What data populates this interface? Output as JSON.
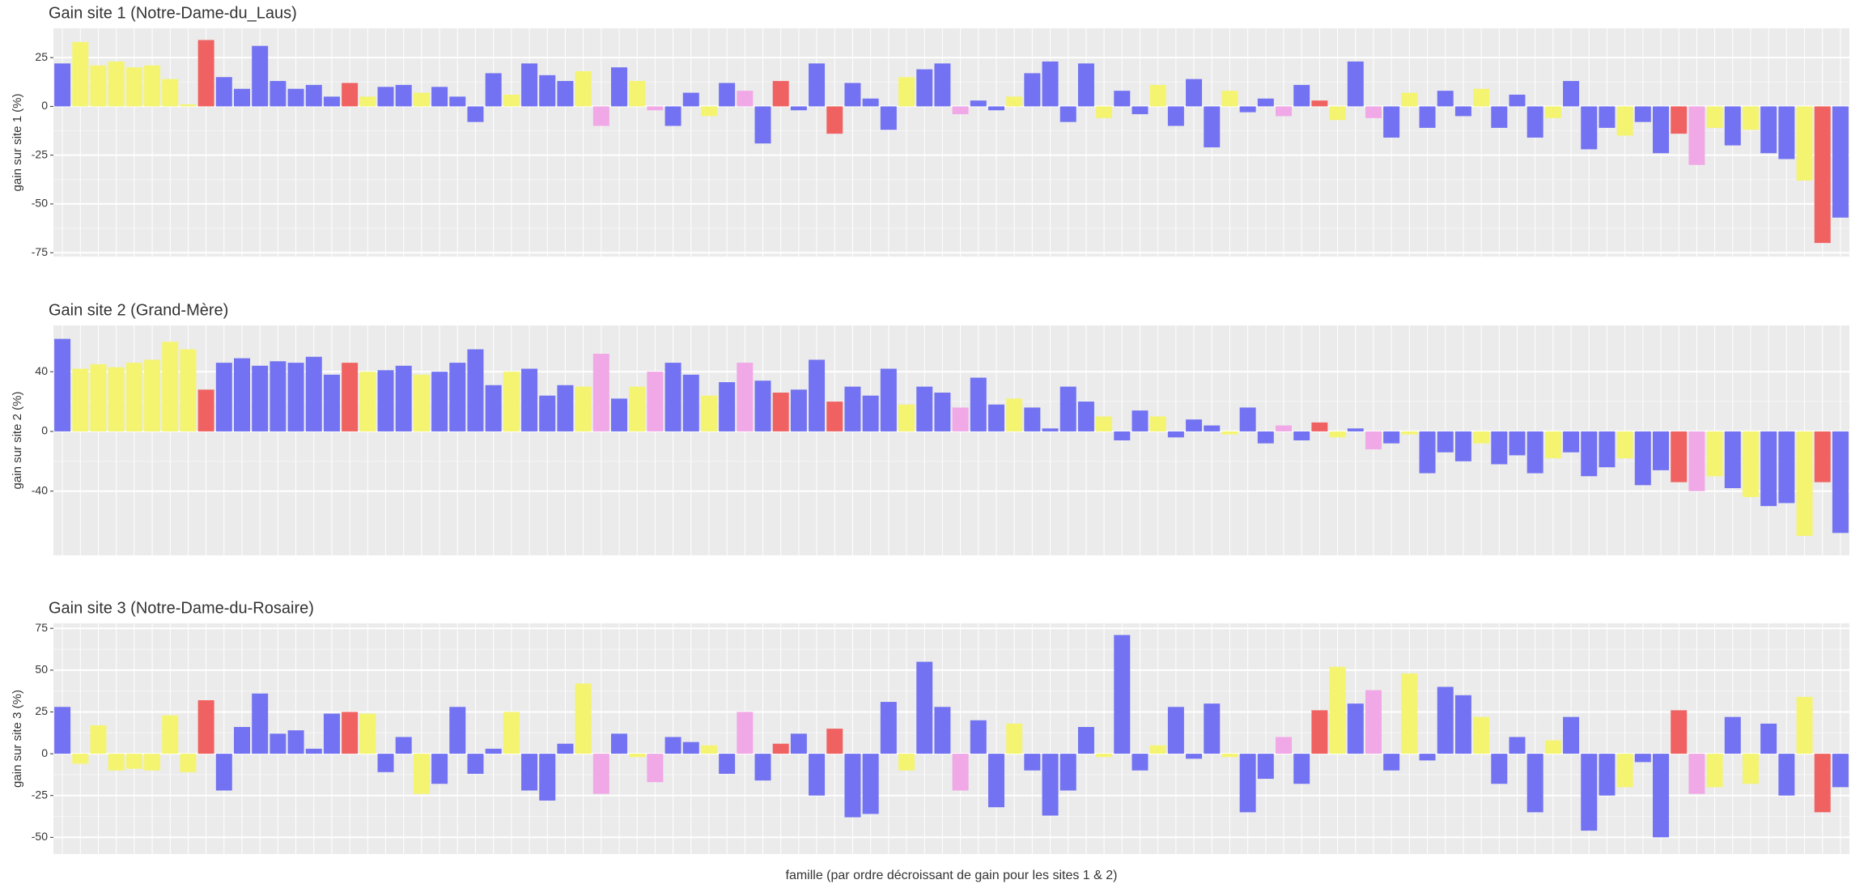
{
  "chart_data": [
    {
      "type": "bar",
      "title": "Gain site 1 (Notre-Dame-du_Laus)",
      "ylabel": "gain sur site 1 (%)",
      "categories": [
        null,
        null,
        null,
        null,
        null,
        null,
        null,
        null,
        null,
        null,
        null,
        null,
        null,
        null,
        null,
        null,
        null,
        null,
        null,
        null,
        null,
        null,
        null,
        null,
        null,
        null,
        null,
        null,
        null,
        null,
        null,
        null,
        null,
        null,
        null,
        null,
        null,
        null,
        null,
        null,
        null,
        null,
        null,
        null,
        null,
        null,
        null,
        null,
        null,
        null,
        null,
        null,
        null,
        null,
        null,
        null,
        null,
        null,
        null,
        null,
        null,
        null,
        null,
        null,
        null,
        null,
        null,
        null,
        null,
        null,
        null,
        null,
        null,
        null,
        null,
        null,
        null,
        null,
        null,
        null,
        null,
        null,
        null,
        null,
        null,
        null,
        null,
        null,
        null,
        null,
        null,
        null,
        null,
        null,
        null,
        null,
        null,
        null,
        null,
        null
      ],
      "values": [
        22,
        33,
        21,
        23,
        20,
        21,
        14,
        1,
        34,
        15,
        9,
        31,
        13,
        9,
        11,
        5,
        12,
        5,
        10,
        11,
        7,
        10,
        5,
        -8,
        17,
        6,
        22,
        16,
        13,
        18,
        -10,
        20,
        13,
        -2,
        -10,
        7,
        -5,
        12,
        8,
        -19,
        13,
        -2,
        22,
        -14,
        12,
        4,
        -12,
        15,
        19,
        22,
        -4,
        3,
        -2,
        5,
        17,
        23,
        -8,
        22,
        -6,
        8,
        -4,
        11,
        -10,
        14,
        -21,
        8,
        -3,
        4,
        -5,
        11,
        3,
        -7,
        23,
        -6,
        -16,
        7,
        -11,
        8,
        -5,
        9,
        -11,
        6,
        -16,
        -6,
        13,
        -22,
        -11,
        -15,
        -8,
        -24,
        -14,
        -30,
        -11,
        -20,
        -12,
        -24,
        -27,
        -38,
        -70,
        -57
      ],
      "colors": [
        "#7272f2",
        "#f4f470",
        "#f4f470",
        "#f4f470",
        "#f4f470",
        "#f4f470",
        "#f4f470",
        "#f4f470",
        "#f06262",
        "#7272f2",
        "#7272f2",
        "#7272f2",
        "#7272f2",
        "#7272f2",
        "#7272f2",
        "#7272f2",
        "#f06262",
        "#f4f470",
        "#7272f2",
        "#7272f2",
        "#f4f470",
        "#7272f2",
        "#7272f2",
        "#7272f2",
        "#7272f2",
        "#f4f470",
        "#7272f2",
        "#7272f2",
        "#7272f2",
        "#f4f470",
        "#f0a8e6",
        "#7272f2",
        "#f4f470",
        "#f0a8e6",
        "#7272f2",
        "#7272f2",
        "#f4f470",
        "#7272f2",
        "#f0a8e6",
        "#7272f2",
        "#f06262",
        "#7272f2",
        "#7272f2",
        "#f06262",
        "#7272f2",
        "#7272f2",
        "#7272f2",
        "#f4f470",
        "#7272f2",
        "#7272f2",
        "#f0a8e6",
        "#7272f2",
        "#7272f2",
        "#f4f470",
        "#7272f2",
        "#7272f2",
        "#7272f2",
        "#7272f2",
        "#f4f470",
        "#7272f2",
        "#7272f2",
        "#f4f470",
        "#7272f2",
        "#7272f2",
        "#7272f2",
        "#f4f470",
        "#7272f2",
        "#7272f2",
        "#f0a8e6",
        "#7272f2",
        "#f06262",
        "#f4f470",
        "#7272f2",
        "#f0a8e6",
        "#7272f2",
        "#f4f470",
        "#7272f2",
        "#7272f2",
        "#7272f2",
        "#f4f470",
        "#7272f2",
        "#7272f2",
        "#7272f2",
        "#f4f470",
        "#7272f2",
        "#7272f2",
        "#7272f2",
        "#f4f470",
        "#7272f2",
        "#7272f2",
        "#f06262",
        "#f0a8e6",
        "#f4f470",
        "#7272f2",
        "#f4f470",
        "#7272f2",
        "#7272f2",
        "#f4f470",
        "#f06262",
        "#7272f2"
      ],
      "ylim": [
        -77,
        40
      ],
      "yticks": [
        -75,
        -50,
        -25,
        0,
        25
      ],
      "grid": true
    },
    {
      "type": "bar",
      "title": "Gain site 2 (Grand-Mère)",
      "ylabel": "gain sur site 2 (%)",
      "categories": [
        null,
        null,
        null,
        null,
        null,
        null,
        null,
        null,
        null,
        null,
        null,
        null,
        null,
        null,
        null,
        null,
        null,
        null,
        null,
        null,
        null,
        null,
        null,
        null,
        null,
        null,
        null,
        null,
        null,
        null,
        null,
        null,
        null,
        null,
        null,
        null,
        null,
        null,
        null,
        null,
        null,
        null,
        null,
        null,
        null,
        null,
        null,
        null,
        null,
        null,
        null,
        null,
        null,
        null,
        null,
        null,
        null,
        null,
        null,
        null,
        null,
        null,
        null,
        null,
        null,
        null,
        null,
        null,
        null,
        null,
        null,
        null,
        null,
        null,
        null,
        null,
        null,
        null,
        null,
        null,
        null,
        null,
        null,
        null,
        null,
        null,
        null,
        null,
        null,
        null,
        null,
        null,
        null,
        null,
        null,
        null,
        null,
        null,
        null,
        null
      ],
      "values": [
        62,
        42,
        45,
        43,
        46,
        48,
        60,
        55,
        28,
        46,
        49,
        44,
        47,
        46,
        50,
        38,
        46,
        40,
        41,
        44,
        38,
        40,
        46,
        55,
        31,
        40,
        42,
        24,
        31,
        30,
        52,
        22,
        30,
        40,
        46,
        38,
        24,
        33,
        46,
        34,
        26,
        28,
        48,
        20,
        30,
        24,
        42,
        18,
        30,
        26,
        16,
        36,
        18,
        22,
        16,
        2,
        30,
        20,
        10,
        -6,
        14,
        10,
        -4,
        8,
        4,
        -2,
        16,
        -8,
        4,
        -6,
        6,
        -4,
        2,
        -12,
        -8,
        -2,
        -28,
        -14,
        -20,
        -8,
        -22,
        -16,
        -28,
        -18,
        -14,
        -30,
        -24,
        -18,
        -36,
        -26,
        -34,
        -40,
        -30,
        -38,
        -44,
        -50,
        -48,
        -70,
        -34,
        -68
      ],
      "colors": [
        "#7272f2",
        "#f4f470",
        "#f4f470",
        "#f4f470",
        "#f4f470",
        "#f4f470",
        "#f4f470",
        "#f4f470",
        "#f06262",
        "#7272f2",
        "#7272f2",
        "#7272f2",
        "#7272f2",
        "#7272f2",
        "#7272f2",
        "#7272f2",
        "#f06262",
        "#f4f470",
        "#7272f2",
        "#7272f2",
        "#f4f470",
        "#7272f2",
        "#7272f2",
        "#7272f2",
        "#7272f2",
        "#f4f470",
        "#7272f2",
        "#7272f2",
        "#7272f2",
        "#f4f470",
        "#f0a8e6",
        "#7272f2",
        "#f4f470",
        "#f0a8e6",
        "#7272f2",
        "#7272f2",
        "#f4f470",
        "#7272f2",
        "#f0a8e6",
        "#7272f2",
        "#f06262",
        "#7272f2",
        "#7272f2",
        "#f06262",
        "#7272f2",
        "#7272f2",
        "#7272f2",
        "#f4f470",
        "#7272f2",
        "#7272f2",
        "#f0a8e6",
        "#7272f2",
        "#7272f2",
        "#f4f470",
        "#7272f2",
        "#7272f2",
        "#7272f2",
        "#7272f2",
        "#f4f470",
        "#7272f2",
        "#7272f2",
        "#f4f470",
        "#7272f2",
        "#7272f2",
        "#7272f2",
        "#f4f470",
        "#7272f2",
        "#7272f2",
        "#f0a8e6",
        "#7272f2",
        "#f06262",
        "#f4f470",
        "#7272f2",
        "#f0a8e6",
        "#7272f2",
        "#f4f470",
        "#7272f2",
        "#7272f2",
        "#7272f2",
        "#f4f470",
        "#7272f2",
        "#7272f2",
        "#7272f2",
        "#f4f470",
        "#7272f2",
        "#7272f2",
        "#7272f2",
        "#f4f470",
        "#7272f2",
        "#7272f2",
        "#f06262",
        "#f0a8e6",
        "#f4f470",
        "#7272f2",
        "#f4f470",
        "#7272f2",
        "#7272f2",
        "#f4f470",
        "#f06262",
        "#7272f2"
      ],
      "ylim": [
        -83,
        71
      ],
      "yticks": [
        -40,
        0,
        40
      ],
      "grid": true
    },
    {
      "type": "bar",
      "title": "Gain site 3 (Notre-Dame-du-Rosaire)",
      "ylabel": "gain sur site 3 (%)",
      "xlabel": "famille (par ordre décroissant de gain pour les sites 1 & 2)",
      "categories": [
        null,
        null,
        null,
        null,
        null,
        null,
        null,
        null,
        null,
        null,
        null,
        null,
        null,
        null,
        null,
        null,
        null,
        null,
        null,
        null,
        null,
        null,
        null,
        null,
        null,
        null,
        null,
        null,
        null,
        null,
        null,
        null,
        null,
        null,
        null,
        null,
        null,
        null,
        null,
        null,
        null,
        null,
        null,
        null,
        null,
        null,
        null,
        null,
        null,
        null,
        null,
        null,
        null,
        null,
        null,
        null,
        null,
        null,
        null,
        null,
        null,
        null,
        null,
        null,
        null,
        null,
        null,
        null,
        null,
        null,
        null,
        null,
        null,
        null,
        null,
        null,
        null,
        null,
        null,
        null,
        null,
        null,
        null,
        null,
        null,
        null,
        null,
        null,
        null,
        null,
        null,
        null,
        null,
        null,
        null,
        null,
        null,
        null,
        null,
        null
      ],
      "values": [
        28,
        -6,
        17,
        -10,
        -9,
        -10,
        23,
        -11,
        32,
        -22,
        16,
        36,
        12,
        14,
        3,
        24,
        25,
        24,
        -11,
        10,
        -24,
        -18,
        28,
        -12,
        3,
        25,
        -22,
        -28,
        6,
        42,
        -24,
        12,
        -2,
        -17,
        10,
        7,
        5,
        -12,
        25,
        -16,
        6,
        12,
        -25,
        15,
        -38,
        -36,
        31,
        -10,
        55,
        28,
        -22,
        20,
        -32,
        18,
        -10,
        -37,
        -22,
        16,
        -2,
        71,
        -10,
        5,
        28,
        -3,
        30,
        -2,
        -35,
        -15,
        10,
        -18,
        26,
        52,
        30,
        38,
        -10,
        48,
        -4,
        40,
        35,
        22,
        -18,
        10,
        -35,
        8,
        22,
        -46,
        -25,
        -20,
        -5,
        -50,
        26,
        -24,
        -20,
        22,
        -18,
        18,
        -25,
        34,
        -35,
        -20
      ],
      "colors": [
        "#7272f2",
        "#f4f470",
        "#f4f470",
        "#f4f470",
        "#f4f470",
        "#f4f470",
        "#f4f470",
        "#f4f470",
        "#f06262",
        "#7272f2",
        "#7272f2",
        "#7272f2",
        "#7272f2",
        "#7272f2",
        "#7272f2",
        "#7272f2",
        "#f06262",
        "#f4f470",
        "#7272f2",
        "#7272f2",
        "#f4f470",
        "#7272f2",
        "#7272f2",
        "#7272f2",
        "#7272f2",
        "#f4f470",
        "#7272f2",
        "#7272f2",
        "#7272f2",
        "#f4f470",
        "#f0a8e6",
        "#7272f2",
        "#f4f470",
        "#f0a8e6",
        "#7272f2",
        "#7272f2",
        "#f4f470",
        "#7272f2",
        "#f0a8e6",
        "#7272f2",
        "#f06262",
        "#7272f2",
        "#7272f2",
        "#f06262",
        "#7272f2",
        "#7272f2",
        "#7272f2",
        "#f4f470",
        "#7272f2",
        "#7272f2",
        "#f0a8e6",
        "#7272f2",
        "#7272f2",
        "#f4f470",
        "#7272f2",
        "#7272f2",
        "#7272f2",
        "#7272f2",
        "#f4f470",
        "#7272f2",
        "#7272f2",
        "#f4f470",
        "#7272f2",
        "#7272f2",
        "#7272f2",
        "#f4f470",
        "#7272f2",
        "#7272f2",
        "#f0a8e6",
        "#7272f2",
        "#f06262",
        "#f4f470",
        "#7272f2",
        "#f0a8e6",
        "#7272f2",
        "#f4f470",
        "#7272f2",
        "#7272f2",
        "#7272f2",
        "#f4f470",
        "#7272f2",
        "#7272f2",
        "#7272f2",
        "#f4f470",
        "#7272f2",
        "#7272f2",
        "#7272f2",
        "#f4f470",
        "#7272f2",
        "#7272f2",
        "#f06262",
        "#f0a8e6",
        "#f4f470",
        "#7272f2",
        "#f4f470",
        "#7272f2",
        "#7272f2",
        "#f4f470",
        "#f06262",
        "#7272f2"
      ],
      "ylim": [
        -60,
        78
      ],
      "yticks": [
        -50,
        -25,
        0,
        25,
        50,
        75
      ],
      "grid": true
    }
  ]
}
